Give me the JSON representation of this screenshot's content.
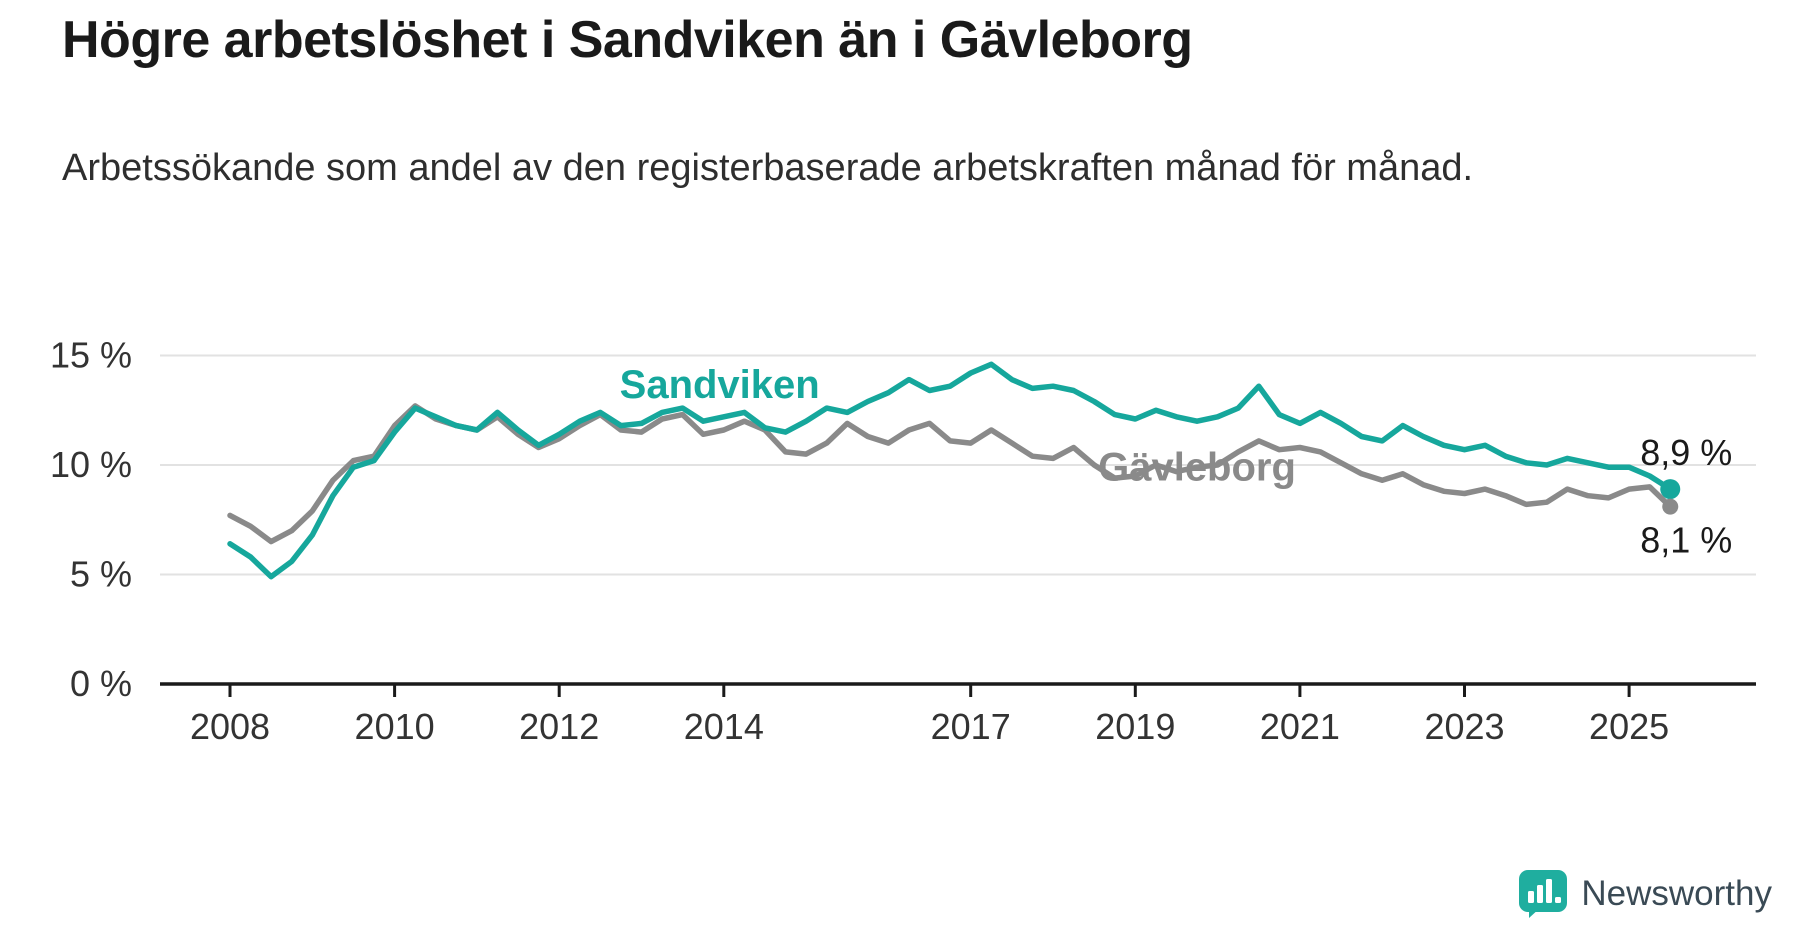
{
  "title": "Högre arbetslöshet i Sandviken än i Gävleborg",
  "subtitle": "Arbetssökande som andel av den registerbaserade arbetskraften månad för månad.",
  "brand": {
    "name": "Newsworthy",
    "color": "#1fae9f",
    "text_color": "#3a4a55"
  },
  "colors": {
    "sandviken": "#16a79c",
    "gavleborg": "#8a8a8a",
    "grid": "#e2e2e2",
    "axis": "#1a1a1a",
    "tick_text": "#333333"
  },
  "chart_data": {
    "type": "line",
    "title": "Högre arbetslöshet i Sandviken än i Gävleborg",
    "subtitle": "Arbetssökande som andel av den registerbaserade arbetskraften månad för månad.",
    "xlabel": "",
    "ylabel": "",
    "xlim": [
      2007.2,
      2026.5
    ],
    "ylim": [
      0,
      16
    ],
    "grid": true,
    "legend_position": "inline-labels",
    "x_ticks": [
      2008,
      2010,
      2012,
      2014,
      2017,
      2019,
      2021,
      2023,
      2025
    ],
    "y_ticks": [
      0,
      5,
      10,
      15
    ],
    "y_tick_labels": [
      "0 %",
      "5 %",
      "10 %",
      "15 %"
    ],
    "grid_color": "#e2e2e2",
    "x": [
      2008,
      2008.25,
      2008.5,
      2008.75,
      2009,
      2009.25,
      2009.5,
      2009.75,
      2010,
      2010.25,
      2010.5,
      2010.75,
      2011,
      2011.25,
      2011.5,
      2011.75,
      2012,
      2012.25,
      2012.5,
      2012.75,
      2013,
      2013.25,
      2013.5,
      2013.75,
      2014,
      2014.25,
      2014.5,
      2014.75,
      2015,
      2015.25,
      2015.5,
      2015.75,
      2016,
      2016.25,
      2016.5,
      2016.75,
      2017,
      2017.25,
      2017.5,
      2017.75,
      2018,
      2018.25,
      2018.5,
      2018.75,
      2019,
      2019.25,
      2019.5,
      2019.75,
      2020,
      2020.25,
      2020.5,
      2020.75,
      2021,
      2021.25,
      2021.5,
      2021.75,
      2022,
      2022.25,
      2022.5,
      2022.75,
      2023,
      2023.25,
      2023.5,
      2023.75,
      2024,
      2024.25,
      2024.5,
      2024.75,
      2025,
      2025.25,
      2025.5
    ],
    "series": [
      {
        "name": "Sandviken",
        "color": "#16a79c",
        "end_label": "8,9 %",
        "end_value": 8.9,
        "values": [
          6.4,
          5.8,
          4.9,
          5.6,
          6.8,
          8.6,
          9.9,
          10.2,
          11.5,
          12.6,
          12.2,
          11.8,
          11.6,
          12.4,
          11.6,
          10.9,
          11.4,
          12.0,
          12.4,
          11.8,
          11.9,
          12.4,
          12.6,
          12.0,
          12.2,
          12.4,
          11.7,
          11.5,
          12.0,
          12.6,
          12.4,
          12.9,
          13.3,
          13.9,
          13.4,
          13.6,
          14.2,
          14.6,
          13.9,
          13.5,
          13.6,
          13.4,
          12.9,
          12.3,
          12.1,
          12.5,
          12.2,
          12.0,
          12.2,
          12.6,
          13.6,
          12.3,
          11.9,
          12.4,
          11.9,
          11.3,
          11.1,
          11.8,
          11.3,
          10.9,
          10.7,
          10.9,
          10.4,
          10.1,
          10.0,
          10.3,
          10.1,
          9.9,
          9.9,
          9.5,
          8.9
        ]
      },
      {
        "name": "Gävleborg",
        "color": "#8a8a8a",
        "end_label": "8,1 %",
        "end_value": 8.1,
        "values": [
          7.7,
          7.2,
          6.5,
          7.0,
          7.9,
          9.3,
          10.2,
          10.4,
          11.8,
          12.7,
          12.1,
          11.8,
          11.6,
          12.2,
          11.4,
          10.8,
          11.2,
          11.8,
          12.3,
          11.6,
          11.5,
          12.1,
          12.3,
          11.4,
          11.6,
          12.0,
          11.6,
          10.6,
          10.5,
          11.0,
          11.9,
          11.3,
          11.0,
          11.6,
          11.9,
          11.1,
          11.0,
          11.6,
          11.0,
          10.4,
          10.3,
          10.8,
          10.0,
          9.4,
          9.5,
          10.0,
          9.7,
          9.9,
          10.0,
          10.6,
          11.1,
          10.7,
          10.8,
          10.6,
          10.1,
          9.6,
          9.3,
          9.6,
          9.1,
          8.8,
          8.7,
          8.9,
          8.6,
          8.2,
          8.3,
          8.9,
          8.6,
          8.5,
          8.9,
          9.0,
          8.1
        ]
      }
    ],
    "series_labels": [
      {
        "text": "Sandviken",
        "series": "Sandviken",
        "x": 2013.95,
        "y": 13.05
      },
      {
        "text": "Gävleborg",
        "series": "Gävleborg",
        "x": 2019.75,
        "y": 9.3
      }
    ]
  }
}
